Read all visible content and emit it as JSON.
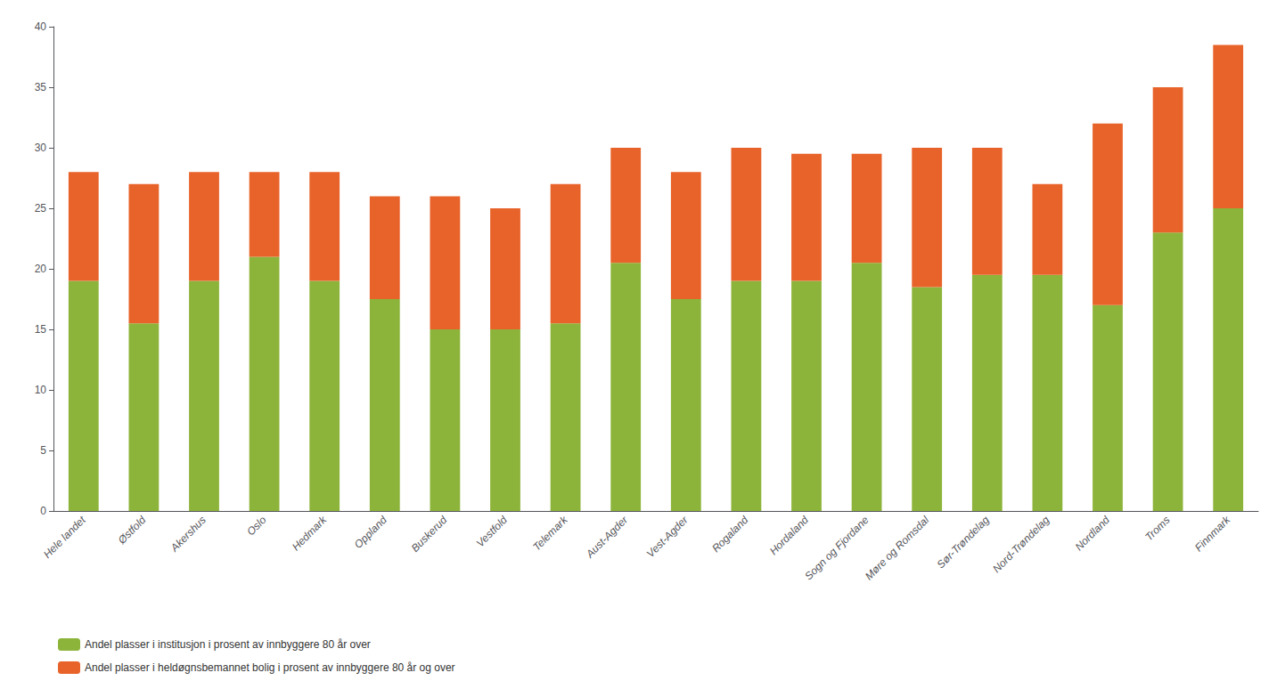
{
  "chart_data": {
    "type": "bar",
    "stacked": true,
    "categories": [
      "Hele landet",
      "Østfold",
      "Akershus",
      "Oslo",
      "Hedmark",
      "Oppland",
      "Buskerud",
      "Vestfold",
      "Telemark",
      "Aust-Agder",
      "Vest-Agder",
      "Rogaland",
      "Hordaland",
      "Sogn og Fjordane",
      "Møre og Romsdal",
      "Sør-Trøndelag",
      "Nord-Trøndelag",
      "Nordland",
      "Troms",
      "Finnmark"
    ],
    "series": [
      {
        "name": "Andel plasser i institusjon i prosent av innbyggere 80 år over",
        "color": "#8db43a",
        "values": [
          19.0,
          15.5,
          19.0,
          21.0,
          19.0,
          17.5,
          15.0,
          15.0,
          15.5,
          20.5,
          17.5,
          19.0,
          19.0,
          20.5,
          18.5,
          19.5,
          19.5,
          17.0,
          23.0,
          25.0
        ]
      },
      {
        "name": "Andel plasser i heldøgnsbemannet bolig i prosent av innbyggere 80 år og over",
        "color": "#e8632a",
        "values": [
          9.0,
          11.5,
          9.0,
          7.0,
          9.0,
          8.5,
          11.0,
          10.0,
          11.5,
          9.5,
          10.5,
          11.0,
          10.5,
          9.0,
          11.5,
          10.5,
          7.5,
          15.0,
          12.0,
          13.5
        ]
      }
    ],
    "ylim": [
      0,
      40
    ],
    "yticks": [
      0,
      5,
      10,
      15,
      20,
      25,
      30,
      35,
      40
    ],
    "grid": false,
    "legend": "bottom"
  }
}
